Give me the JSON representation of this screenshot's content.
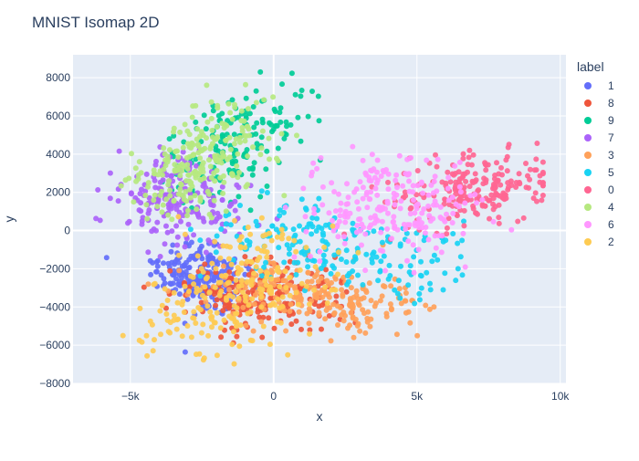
{
  "chart_data": {
    "type": "scatter",
    "title": "MNIST Isomap 2D",
    "xlabel": "x",
    "ylabel": "y",
    "xlim": [
      -7000,
      10200
    ],
    "ylim": [
      -8000,
      9200
    ],
    "xticks": [
      -5000,
      0,
      5000,
      10000
    ],
    "xtick_labels": [
      "−5k",
      "0",
      "5k",
      "10k"
    ],
    "yticks": [
      -8000,
      -6000,
      -4000,
      -2000,
      0,
      2000,
      4000,
      6000,
      8000
    ],
    "ytick_labels": [
      "−8000",
      "−6000",
      "−4000",
      "−2000",
      "0",
      "2000",
      "4000",
      "6000",
      "8000"
    ],
    "grid": true,
    "legend_title": "label",
    "legend_position": "right",
    "series": [
      {
        "name": "1",
        "color": "#636efa",
        "centers": [
          [
            -2500,
            -2500
          ],
          [
            -3000,
            -1800
          ],
          [
            -2000,
            -3000
          ]
        ],
        "spread": [
          700,
          800
        ],
        "count": 220
      },
      {
        "name": "8",
        "color": "#ef553b",
        "centers": [
          [
            -1500,
            -3000
          ],
          [
            -500,
            -3800
          ],
          [
            500,
            -3500
          ]
        ],
        "spread": [
          1200,
          900
        ],
        "count": 200
      },
      {
        "name": "9",
        "color": "#00cc96",
        "centers": [
          [
            -1500,
            4500
          ],
          [
            -2000,
            3000
          ],
          [
            0,
            6000
          ]
        ],
        "spread": [
          900,
          1100
        ],
        "count": 160
      },
      {
        "name": "7",
        "color": "#ab63fa",
        "centers": [
          [
            -4000,
            1500
          ],
          [
            -3500,
            2500
          ],
          [
            -2500,
            800
          ]
        ],
        "spread": [
          900,
          1000
        ],
        "count": 190
      },
      {
        "name": "3",
        "color": "#ffa15a",
        "centers": [
          [
            1500,
            -3500
          ],
          [
            3000,
            -4000
          ],
          [
            0,
            -3000
          ]
        ],
        "spread": [
          1400,
          800
        ],
        "count": 230
      },
      {
        "name": "5",
        "color": "#19d3f3",
        "centers": [
          [
            2000,
            -1000
          ],
          [
            4500,
            -1500
          ],
          [
            500,
            0
          ]
        ],
        "spread": [
          1500,
          1000
        ],
        "count": 200
      },
      {
        "name": "0",
        "color": "#ff6692",
        "centers": [
          [
            7000,
            2500
          ],
          [
            6000,
            1500
          ],
          [
            8000,
            2500
          ]
        ],
        "spread": [
          1100,
          800
        ],
        "count": 220
      },
      {
        "name": "4",
        "color": "#b6e880",
        "centers": [
          [
            -2500,
            3500
          ],
          [
            -1500,
            5000
          ],
          [
            -3500,
            2500
          ]
        ],
        "spread": [
          900,
          1100
        ],
        "count": 240
      },
      {
        "name": "6",
        "color": "#ff97ff",
        "centers": [
          [
            4000,
            2500
          ],
          [
            5000,
            1000
          ],
          [
            3000,
            500
          ]
        ],
        "spread": [
          1300,
          1100
        ],
        "count": 220
      },
      {
        "name": "2",
        "color": "#fecb52",
        "centers": [
          [
            -1500,
            -3500
          ],
          [
            -500,
            -1500
          ],
          [
            -2000,
            -4500
          ]
        ],
        "spread": [
          1400,
          1200
        ],
        "count": 230
      }
    ]
  }
}
